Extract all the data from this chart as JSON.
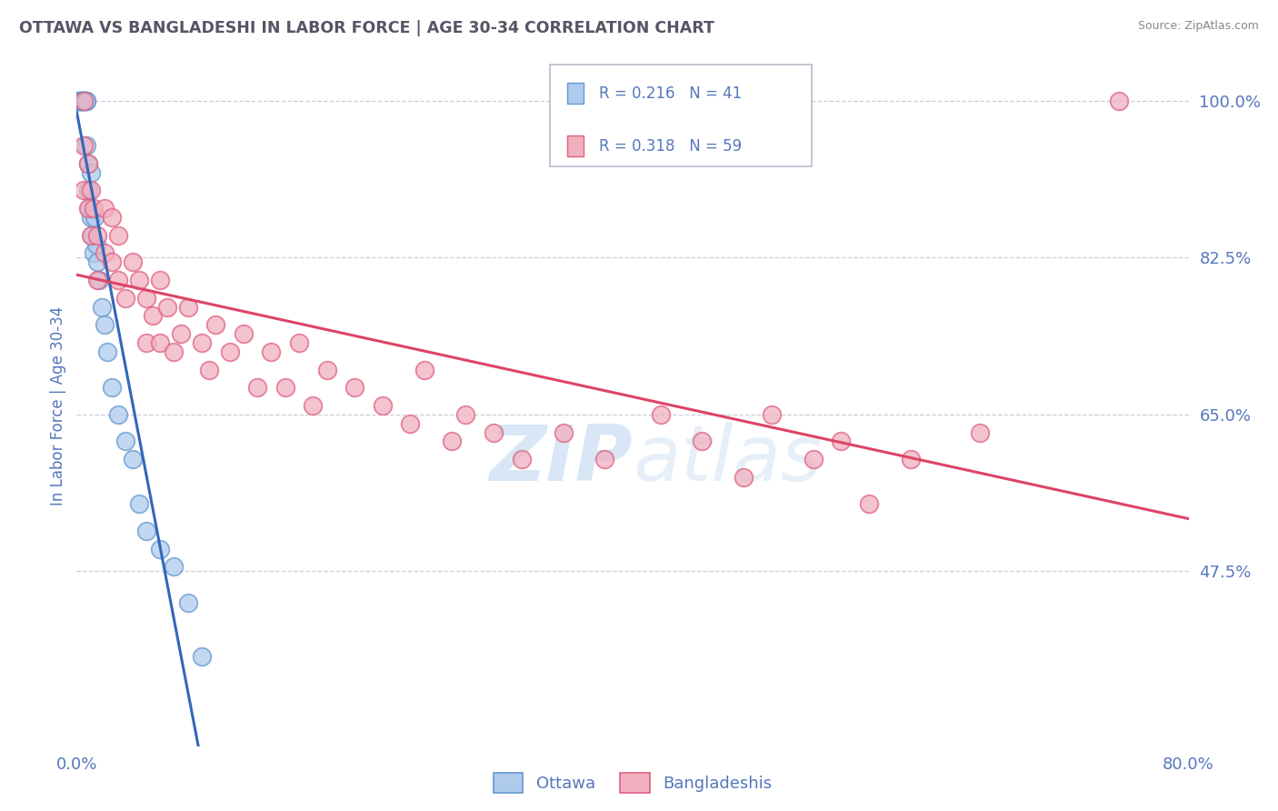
{
  "title": "OTTAWA VS BANGLADESHI IN LABOR FORCE | AGE 30-34 CORRELATION CHART",
  "source": "Source: ZipAtlas.com",
  "ylabel": "In Labor Force | Age 30-34",
  "x_min": 0.0,
  "x_max": 80.0,
  "y_min": 28.0,
  "y_max": 104.0,
  "y_ticks": [
    47.5,
    65.0,
    82.5,
    100.0
  ],
  "watermark_zip": "ZIP",
  "watermark_atlas": "atlas",
  "legend_R1": "R = 0.216",
  "legend_N1": "N = 41",
  "legend_R2": "R = 0.318",
  "legend_N2": "N = 59",
  "ottawa_color": "#aecbee",
  "bangladeshi_color": "#f0b0c0",
  "ottawa_edge_color": "#6699cc",
  "bangladeshi_edge_color": "#e06080",
  "ottawa_line_color": "#3366bb",
  "bangladeshi_line_color": "#dd4466",
  "grid_color": "#ccccdd",
  "title_color": "#555566",
  "axis_color": "#5577bb",
  "source_color": "#888888",
  "background_color": "#ffffff",
  "ottawa_x": [
    0.2,
    0.2,
    0.2,
    0.3,
    0.3,
    0.4,
    0.4,
    0.4,
    0.5,
    0.5,
    0.5,
    0.5,
    0.6,
    0.6,
    0.7,
    0.7,
    0.7,
    0.8,
    0.8,
    0.9,
    1.0,
    1.0,
    1.1,
    1.2,
    1.3,
    1.4,
    1.5,
    1.6,
    1.8,
    2.0,
    2.2,
    2.5,
    3.0,
    3.5,
    4.0,
    4.5,
    5.0,
    6.0,
    7.0,
    8.0,
    9.0
  ],
  "ottawa_y": [
    100.0,
    100.0,
    100.0,
    100.0,
    100.0,
    100.0,
    100.0,
    100.0,
    100.0,
    100.0,
    100.0,
    100.0,
    100.0,
    100.0,
    100.0,
    100.0,
    95.0,
    93.0,
    90.0,
    88.0,
    92.0,
    87.0,
    85.0,
    83.0,
    87.0,
    84.0,
    82.0,
    80.0,
    77.0,
    75.0,
    72.0,
    68.0,
    65.0,
    62.0,
    60.0,
    55.0,
    52.0,
    50.0,
    48.0,
    44.0,
    38.0
  ],
  "bangladeshi_x": [
    0.5,
    0.5,
    0.5,
    0.8,
    0.8,
    1.0,
    1.0,
    1.2,
    1.5,
    1.5,
    2.0,
    2.0,
    2.5,
    2.5,
    3.0,
    3.0,
    3.5,
    4.0,
    4.5,
    5.0,
    5.0,
    5.5,
    6.0,
    6.0,
    6.5,
    7.0,
    7.5,
    8.0,
    9.0,
    9.5,
    10.0,
    11.0,
    12.0,
    13.0,
    14.0,
    15.0,
    16.0,
    17.0,
    18.0,
    20.0,
    22.0,
    24.0,
    25.0,
    27.0,
    28.0,
    30.0,
    32.0,
    35.0,
    38.0,
    42.0,
    45.0,
    48.0,
    50.0,
    53.0,
    55.0,
    57.0,
    60.0,
    65.0,
    75.0
  ],
  "bangladeshi_y": [
    100.0,
    95.0,
    90.0,
    88.0,
    93.0,
    90.0,
    85.0,
    88.0,
    85.0,
    80.0,
    88.0,
    83.0,
    82.0,
    87.0,
    80.0,
    85.0,
    78.0,
    82.0,
    80.0,
    78.0,
    73.0,
    76.0,
    80.0,
    73.0,
    77.0,
    72.0,
    74.0,
    77.0,
    73.0,
    70.0,
    75.0,
    72.0,
    74.0,
    68.0,
    72.0,
    68.0,
    73.0,
    66.0,
    70.0,
    68.0,
    66.0,
    64.0,
    70.0,
    62.0,
    65.0,
    63.0,
    60.0,
    63.0,
    60.0,
    65.0,
    62.0,
    58.0,
    65.0,
    60.0,
    62.0,
    55.0,
    60.0,
    63.0,
    100.0
  ]
}
